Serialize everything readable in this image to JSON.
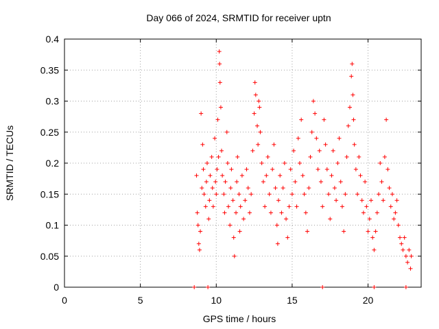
{
  "chart_data": {
    "type": "scatter",
    "title": "Day 066 of 2024, SRMTID for receiver uptn",
    "xlabel": "GPS time / hours",
    "ylabel": "SRMTID / TECUs",
    "xlim": [
      0,
      23.5
    ],
    "ylim": [
      0,
      0.4
    ],
    "x_ticks": [
      0,
      5,
      10,
      15,
      20
    ],
    "x_tick_labels": [
      "0",
      "5",
      "10",
      "15",
      "20"
    ],
    "y_ticks": [
      0,
      0.05,
      0.1,
      0.15,
      0.2,
      0.25,
      0.3,
      0.35,
      0.4
    ],
    "y_tick_labels": [
      "0",
      "0.05",
      "0.1",
      "0.15",
      "0.2",
      "0.25",
      "0.3",
      "0.35",
      "0.4"
    ],
    "grid": true,
    "legend": "none",
    "marker": "plus",
    "color": "#ff0000",
    "series": [
      {
        "values": [
          [
            8.7,
            0.18
          ],
          [
            8.75,
            0.12
          ],
          [
            8.8,
            0.1
          ],
          [
            8.85,
            0.07
          ],
          [
            8.9,
            0.06
          ],
          [
            8.95,
            0.09
          ],
          [
            9.0,
            0.28
          ],
          [
            9.05,
            0.16
          ],
          [
            9.1,
            0.23
          ],
          [
            9.15,
            0.19
          ],
          [
            9.2,
            0.15
          ],
          [
            9.3,
            0.13
          ],
          [
            9.35,
            0.17
          ],
          [
            9.4,
            0.2
          ],
          [
            9.5,
            0.11
          ],
          [
            9.55,
            0.14
          ],
          [
            9.6,
            0.18
          ],
          [
            9.7,
            0.21
          ],
          [
            9.75,
            0.16
          ],
          [
            9.8,
            0.13
          ],
          [
            9.9,
            0.24
          ],
          [
            9.95,
            0.17
          ],
          [
            10.0,
            0.15
          ],
          [
            10.05,
            0.19
          ],
          [
            10.1,
            0.27
          ],
          [
            10.15,
            0.21
          ],
          [
            10.2,
            0.38
          ],
          [
            10.22,
            0.36
          ],
          [
            10.25,
            0.33
          ],
          [
            10.3,
            0.29
          ],
          [
            10.35,
            0.22
          ],
          [
            10.4,
            0.18
          ],
          [
            10.5,
            0.15
          ],
          [
            10.55,
            0.12
          ],
          [
            10.6,
            0.17
          ],
          [
            10.7,
            0.25
          ],
          [
            10.75,
            0.2
          ],
          [
            10.8,
            0.13
          ],
          [
            10.9,
            0.1
          ],
          [
            10.95,
            0.16
          ],
          [
            11.0,
            0.19
          ],
          [
            11.1,
            0.14
          ],
          [
            11.15,
            0.08
          ],
          [
            11.2,
            0.05
          ],
          [
            11.3,
            0.12
          ],
          [
            11.35,
            0.17
          ],
          [
            11.4,
            0.21
          ],
          [
            11.5,
            0.15
          ],
          [
            11.55,
            0.09
          ],
          [
            11.6,
            0.13
          ],
          [
            11.7,
            0.18
          ],
          [
            11.8,
            0.11
          ],
          [
            11.9,
            0.14
          ],
          [
            12.0,
            0.19
          ],
          [
            12.1,
            0.16
          ],
          [
            12.2,
            0.12
          ],
          [
            12.3,
            0.15
          ],
          [
            12.4,
            0.22
          ],
          [
            12.5,
            0.28
          ],
          [
            12.55,
            0.33
          ],
          [
            12.6,
            0.31
          ],
          [
            12.7,
            0.26
          ],
          [
            12.75,
            0.23
          ],
          [
            12.8,
            0.3
          ],
          [
            12.85,
            0.29
          ],
          [
            12.9,
            0.25
          ],
          [
            13.0,
            0.2
          ],
          [
            13.1,
            0.17
          ],
          [
            13.2,
            0.13
          ],
          [
            13.3,
            0.18
          ],
          [
            13.4,
            0.21
          ],
          [
            13.5,
            0.15
          ],
          [
            13.6,
            0.12
          ],
          [
            13.7,
            0.19
          ],
          [
            13.8,
            0.23
          ],
          [
            13.9,
            0.16
          ],
          [
            14.0,
            0.1
          ],
          [
            14.05,
            0.07
          ],
          [
            14.1,
            0.14
          ],
          [
            14.2,
            0.18
          ],
          [
            14.3,
            0.12
          ],
          [
            14.4,
            0.16
          ],
          [
            14.5,
            0.2
          ],
          [
            14.6,
            0.11
          ],
          [
            14.7,
            0.08
          ],
          [
            14.8,
            0.13
          ],
          [
            14.9,
            0.19
          ],
          [
            15.0,
            0.15
          ],
          [
            15.1,
            0.22
          ],
          [
            15.2,
            0.17
          ],
          [
            15.3,
            0.13
          ],
          [
            15.4,
            0.24
          ],
          [
            15.5,
            0.2
          ],
          [
            15.6,
            0.27
          ],
          [
            15.7,
            0.18
          ],
          [
            15.8,
            0.15
          ],
          [
            15.9,
            0.12
          ],
          [
            16.0,
            0.09
          ],
          [
            16.1,
            0.16
          ],
          [
            16.2,
            0.21
          ],
          [
            16.3,
            0.25
          ],
          [
            16.4,
            0.3
          ],
          [
            16.5,
            0.28
          ],
          [
            16.6,
            0.24
          ],
          [
            16.7,
            0.19
          ],
          [
            16.8,
            0.22
          ],
          [
            16.9,
            0.17
          ],
          [
            17.0,
            0.13
          ],
          [
            17.1,
            0.27
          ],
          [
            17.2,
            0.23
          ],
          [
            17.3,
            0.19
          ],
          [
            17.4,
            0.15
          ],
          [
            17.5,
            0.11
          ],
          [
            17.6,
            0.18
          ],
          [
            17.7,
            0.22
          ],
          [
            17.8,
            0.16
          ],
          [
            17.9,
            0.14
          ],
          [
            18.0,
            0.2
          ],
          [
            18.1,
            0.24
          ],
          [
            18.2,
            0.17
          ],
          [
            18.3,
            0.13
          ],
          [
            18.4,
            0.09
          ],
          [
            18.5,
            0.15
          ],
          [
            18.6,
            0.21
          ],
          [
            18.7,
            0.26
          ],
          [
            18.8,
            0.29
          ],
          [
            18.9,
            0.34
          ],
          [
            18.95,
            0.36
          ],
          [
            19.0,
            0.31
          ],
          [
            19.05,
            0.27
          ],
          [
            19.1,
            0.23
          ],
          [
            19.2,
            0.19
          ],
          [
            19.3,
            0.15
          ],
          [
            19.4,
            0.21
          ],
          [
            19.5,
            0.18
          ],
          [
            19.6,
            0.14
          ],
          [
            19.7,
            0.12
          ],
          [
            19.8,
            0.17
          ],
          [
            19.9,
            0.13
          ],
          [
            20.0,
            0.09
          ],
          [
            20.1,
            0.11
          ],
          [
            20.2,
            0.14
          ],
          [
            20.3,
            0.08
          ],
          [
            20.4,
            0.06
          ],
          [
            20.5,
            0.09
          ],
          [
            20.6,
            0.12
          ],
          [
            20.7,
            0.15
          ],
          [
            20.8,
            0.2
          ],
          [
            20.9,
            0.17
          ],
          [
            21.0,
            0.14
          ],
          [
            21.1,
            0.21
          ],
          [
            21.2,
            0.27
          ],
          [
            21.3,
            0.19
          ],
          [
            21.4,
            0.16
          ],
          [
            21.5,
            0.13
          ],
          [
            21.6,
            0.15
          ],
          [
            21.7,
            0.11
          ],
          [
            21.8,
            0.12
          ],
          [
            21.9,
            0.14
          ],
          [
            22.0,
            0.1
          ],
          [
            22.1,
            0.08
          ],
          [
            22.2,
            0.07
          ],
          [
            22.3,
            0.06
          ],
          [
            22.4,
            0.08
          ],
          [
            22.5,
            0.05
          ],
          [
            22.6,
            0.04
          ],
          [
            22.7,
            0.06
          ],
          [
            22.8,
            0.03
          ],
          [
            22.85,
            0.05
          ]
        ]
      },
      {
        "values": [
          [
            8.55,
            0.0
          ],
          [
            9.45,
            0.0
          ],
          [
            17.0,
            0.0
          ],
          [
            20.4,
            0.0
          ],
          [
            22.5,
            0.0
          ]
        ]
      }
    ]
  }
}
